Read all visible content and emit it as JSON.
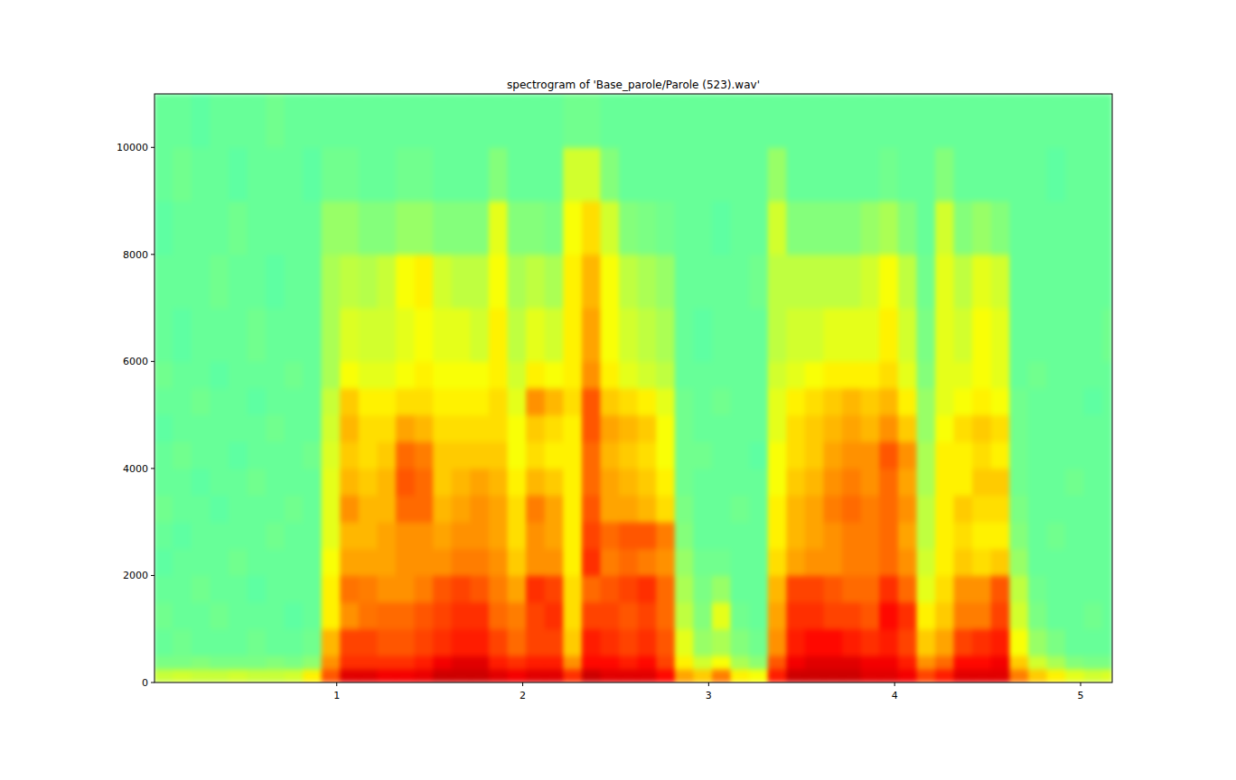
{
  "chart_data": {
    "type": "heatmap",
    "title": "spectrogram of 'Base_parole/Parole (523).wav'",
    "xlim": [
      0.02,
      5.17
    ],
    "ylim": [
      0,
      11000
    ],
    "xticks": [
      1,
      2,
      3,
      4,
      5
    ],
    "yticks": [
      0,
      2000,
      4000,
      6000,
      8000,
      10000
    ],
    "grid": false,
    "zlim": [
      -5,
      100
    ],
    "x_bins": [
      0.02,
      0.12,
      0.22,
      0.32,
      0.42,
      0.52,
      0.62,
      0.72,
      0.82,
      0.92,
      1.02,
      1.12,
      1.22,
      1.32,
      1.42,
      1.52,
      1.62,
      1.72,
      1.82,
      1.92,
      2.02,
      2.12,
      2.22,
      2.32,
      2.42,
      2.52,
      2.62,
      2.72,
      2.82,
      2.92,
      3.02,
      3.12,
      3.22,
      3.32,
      3.42,
      3.52,
      3.62,
      3.72,
      3.82,
      3.92,
      4.02,
      4.12,
      4.22,
      4.32,
      4.42,
      4.52,
      4.62,
      4.72,
      4.82,
      4.92,
      5.02,
      5.12,
      5.17
    ],
    "y_bins": [
      0,
      250,
      500,
      1000,
      1500,
      2000,
      2500,
      3000,
      3500,
      4000,
      4500,
      5000,
      5500,
      6000,
      7000,
      8000,
      9000,
      10000,
      11000
    ],
    "values": [
      [
        55,
        47,
        45,
        46,
        45,
        44,
        45,
        46,
        45,
        45,
        44,
        45,
        46,
        45,
        45,
        44,
        45,
        45
      ],
      [
        56,
        47,
        46,
        45,
        45,
        45,
        44,
        45,
        45,
        46,
        45,
        45,
        45,
        44,
        45,
        45,
        46,
        45
      ],
      [
        55,
        48,
        45,
        45,
        46,
        45,
        45,
        45,
        44,
        45,
        45,
        46,
        45,
        45,
        45,
        45,
        45,
        44
      ],
      [
        55,
        47,
        45,
        46,
        45,
        45,
        45,
        44,
        45,
        45,
        45,
        45,
        44,
        45,
        46,
        45,
        45,
        45
      ],
      [
        56,
        47,
        45,
        45,
        45,
        46,
        45,
        45,
        45,
        44,
        45,
        45,
        45,
        45,
        45,
        46,
        44,
        45
      ],
      [
        55,
        47,
        46,
        45,
        44,
        45,
        45,
        45,
        46,
        45,
        45,
        44,
        45,
        46,
        45,
        45,
        45,
        45
      ],
      [
        55,
        48,
        45,
        45,
        45,
        45,
        46,
        45,
        45,
        45,
        46,
        45,
        45,
        45,
        44,
        45,
        45,
        46
      ],
      [
        56,
        47,
        45,
        44,
        45,
        45,
        45,
        46,
        45,
        45,
        45,
        45,
        46,
        45,
        45,
        45,
        45,
        45
      ],
      [
        62,
        49,
        46,
        45,
        45,
        45,
        45,
        45,
        45,
        46,
        45,
        45,
        45,
        45,
        45,
        45,
        44,
        45
      ],
      [
        78,
        72,
        68,
        62,
        62,
        60,
        58,
        58,
        58,
        57,
        56,
        55,
        52,
        52,
        52,
        50,
        46,
        45
      ],
      [
        90,
        82,
        80,
        72,
        75,
        70,
        68,
        72,
        68,
        66,
        68,
        66,
        60,
        57,
        54,
        50,
        46,
        45
      ],
      [
        90,
        82,
        80,
        75,
        74,
        70,
        68,
        68,
        66,
        64,
        64,
        62,
        58,
        56,
        53,
        48,
        45,
        45
      ],
      [
        88,
        82,
        78,
        76,
        72,
        70,
        70,
        68,
        68,
        66,
        64,
        62,
        58,
        56,
        55,
        48,
        45,
        45
      ],
      [
        88,
        82,
        78,
        76,
        72,
        72,
        72,
        76,
        78,
        76,
        70,
        64,
        60,
        58,
        60,
        50,
        46,
        45
      ],
      [
        89,
        84,
        80,
        78,
        74,
        72,
        72,
        76,
        76,
        74,
        68,
        64,
        62,
        60,
        62,
        50,
        46,
        45
      ],
      [
        92,
        88,
        82,
        80,
        78,
        72,
        70,
        68,
        66,
        66,
        64,
        62,
        60,
        58,
        56,
        48,
        45,
        45
      ],
      [
        92,
        90,
        84,
        82,
        80,
        74,
        72,
        70,
        68,
        66,
        64,
        62,
        60,
        58,
        54,
        48,
        45,
        45
      ],
      [
        92,
        90,
        84,
        82,
        78,
        74,
        72,
        72,
        70,
        66,
        64,
        62,
        60,
        56,
        54,
        48,
        45,
        45
      ],
      [
        90,
        84,
        80,
        76,
        74,
        72,
        70,
        70,
        68,
        66,
        64,
        64,
        62,
        62,
        60,
        58,
        48,
        45
      ],
      [
        88,
        82,
        76,
        74,
        70,
        66,
        64,
        64,
        62,
        60,
        60,
        58,
        56,
        54,
        52,
        48,
        45,
        45
      ],
      [
        90,
        84,
        80,
        80,
        82,
        72,
        72,
        74,
        68,
        64,
        66,
        72,
        62,
        58,
        54,
        48,
        45,
        45
      ],
      [
        90,
        84,
        80,
        82,
        80,
        72,
        70,
        70,
        66,
        62,
        64,
        68,
        60,
        56,
        52,
        47,
        45,
        45
      ],
      [
        82,
        72,
        66,
        64,
        64,
        62,
        62,
        62,
        62,
        62,
        62,
        64,
        62,
        62,
        62,
        60,
        56,
        46
      ],
      [
        92,
        86,
        84,
        80,
        76,
        82,
        80,
        78,
        76,
        76,
        78,
        78,
        72,
        70,
        68,
        64,
        56,
        46
      ],
      [
        90,
        86,
        82,
        80,
        78,
        74,
        76,
        70,
        70,
        68,
        70,
        66,
        62,
        60,
        60,
        56,
        48,
        45
      ],
      [
        90,
        84,
        80,
        78,
        80,
        76,
        78,
        70,
        68,
        66,
        68,
        64,
        58,
        56,
        54,
        48,
        45,
        45
      ],
      [
        90,
        86,
        82,
        80,
        82,
        74,
        78,
        68,
        66,
        64,
        66,
        62,
        56,
        54,
        52,
        47,
        45,
        45
      ],
      [
        86,
        80,
        78,
        76,
        76,
        72,
        74,
        64,
        62,
        60,
        60,
        58,
        54,
        52,
        50,
        46,
        45,
        45
      ],
      [
        70,
        62,
        58,
        54,
        52,
        50,
        48,
        47,
        46,
        46,
        46,
        46,
        45,
        45,
        45,
        45,
        45,
        45
      ],
      [
        66,
        56,
        50,
        48,
        47,
        46,
        45,
        45,
        45,
        46,
        45,
        45,
        45,
        44,
        45,
        45,
        45,
        45
      ],
      [
        74,
        60,
        52,
        58,
        50,
        46,
        45,
        45,
        45,
        45,
        45,
        46,
        45,
        45,
        45,
        44,
        45,
        45
      ],
      [
        62,
        52,
        48,
        46,
        45,
        45,
        45,
        46,
        45,
        45,
        45,
        45,
        45,
        45,
        45,
        45,
        45,
        45
      ],
      [
        60,
        49,
        46,
        45,
        45,
        45,
        45,
        45,
        45,
        44,
        45,
        45,
        45,
        45,
        46,
        45,
        45,
        45
      ],
      [
        84,
        78,
        72,
        70,
        68,
        64,
        62,
        62,
        60,
        60,
        58,
        58,
        56,
        54,
        54,
        56,
        50,
        45
      ],
      [
        92,
        88,
        84,
        82,
        80,
        70,
        68,
        68,
        66,
        64,
        64,
        62,
        58,
        56,
        54,
        48,
        45,
        45
      ],
      [
        92,
        90,
        86,
        82,
        80,
        72,
        70,
        70,
        68,
        66,
        66,
        64,
        60,
        56,
        54,
        48,
        45,
        45
      ],
      [
        92,
        90,
        86,
        80,
        78,
        72,
        72,
        74,
        72,
        70,
        68,
        66,
        62,
        58,
        54,
        48,
        45,
        45
      ],
      [
        92,
        90,
        84,
        80,
        76,
        74,
        74,
        76,
        74,
        72,
        70,
        68,
        62,
        58,
        54,
        48,
        45,
        45
      ],
      [
        90,
        88,
        82,
        78,
        76,
        74,
        74,
        74,
        72,
        72,
        68,
        66,
        62,
        58,
        56,
        50,
        45,
        45
      ],
      [
        90,
        88,
        84,
        86,
        82,
        76,
        76,
        76,
        76,
        78,
        72,
        68,
        64,
        62,
        60,
        52,
        46,
        45
      ],
      [
        88,
        84,
        80,
        82,
        76,
        72,
        70,
        72,
        70,
        72,
        66,
        62,
        58,
        56,
        54,
        48,
        45,
        45
      ],
      [
        80,
        72,
        66,
        62,
        58,
        56,
        54,
        54,
        52,
        52,
        50,
        50,
        48,
        47,
        46,
        45,
        45,
        45
      ],
      [
        84,
        76,
        70,
        66,
        64,
        62,
        62,
        62,
        62,
        62,
        60,
        58,
        58,
        58,
        58,
        56,
        48,
        45
      ],
      [
        90,
        86,
        80,
        74,
        72,
        66,
        64,
        66,
        62,
        62,
        64,
        60,
        58,
        56,
        54,
        48,
        45,
        45
      ],
      [
        90,
        86,
        82,
        74,
        72,
        64,
        62,
        64,
        66,
        64,
        66,
        62,
        60,
        60,
        58,
        50,
        45,
        45
      ],
      [
        90,
        88,
        84,
        80,
        78,
        66,
        62,
        64,
        66,
        62,
        64,
        60,
        58,
        58,
        56,
        48,
        45,
        45
      ],
      [
        74,
        66,
        60,
        56,
        54,
        50,
        48,
        47,
        46,
        46,
        46,
        46,
        45,
        45,
        45,
        45,
        45,
        45
      ],
      [
        66,
        56,
        50,
        47,
        46,
        45,
        45,
        45,
        45,
        45,
        45,
        45,
        46,
        45,
        45,
        45,
        45,
        45
      ],
      [
        62,
        52,
        47,
        45,
        45,
        45,
        46,
        45,
        45,
        45,
        45,
        45,
        45,
        45,
        45,
        45,
        44,
        45
      ],
      [
        58,
        48,
        45,
        45,
        45,
        45,
        45,
        45,
        46,
        45,
        45,
        45,
        45,
        45,
        45,
        45,
        45,
        45
      ],
      [
        56,
        47,
        45,
        46,
        45,
        45,
        45,
        45,
        45,
        45,
        45,
        44,
        45,
        45,
        45,
        45,
        45,
        45
      ],
      [
        57,
        47,
        45,
        45,
        45,
        45,
        45,
        45,
        45,
        45,
        45,
        45,
        45,
        46,
        45,
        45,
        45,
        45
      ]
    ]
  }
}
